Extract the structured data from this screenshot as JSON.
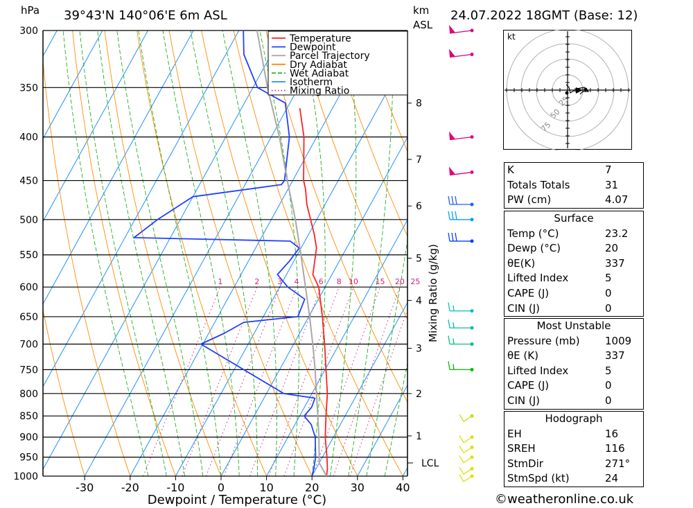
{
  "header": {
    "location": "39°43'N  140°06'E  6m  ASL",
    "datetime": "24.07.2022  18GMT  (Base: 12)",
    "hpa_label": "hPa",
    "km_label": "km",
    "asl_label": "ASL",
    "kt_label": "kt",
    "lcl_label": "LCL",
    "mixing_ratio_axis_label": "Mixing Ratio (g/kg)",
    "copyright": "©weatheronline.co.uk"
  },
  "chart_data": {
    "type": "line",
    "title": "39°43'N  140°06'E  6m  ASL",
    "xlabel": "Dewpoint / Temperature (°C)",
    "ylabel": "hPa",
    "xlim": [
      -40,
      40
    ],
    "ylim": [
      1000,
      300
    ],
    "pressure_ticks": [
      300,
      350,
      400,
      450,
      500,
      550,
      600,
      650,
      700,
      750,
      800,
      850,
      900,
      950,
      1000
    ],
    "temperature_ticks": [
      -30,
      -20,
      -10,
      0,
      10,
      20,
      30,
      40
    ],
    "km_ticks": [
      {
        "label": "8",
        "p": 365
      },
      {
        "label": "7",
        "p": 425
      },
      {
        "label": "6",
        "p": 482
      },
      {
        "label": "5",
        "p": 555
      },
      {
        "label": "4",
        "p": 622
      },
      {
        "label": "3",
        "p": 708
      },
      {
        "label": "2",
        "p": 800
      },
      {
        "label": "1",
        "p": 897
      }
    ],
    "lcl_p": 965,
    "mixing_ratio_labels": [
      "1",
      "2",
      "3",
      "4",
      "6",
      "8",
      "10",
      "15",
      "20",
      "25"
    ],
    "legend": [
      "Temperature",
      "Dewpoint",
      "Parcel Trajectory",
      "Dry Adiabat",
      "Wet Adiabat",
      "Isotherm",
      "Mixing Ratio"
    ],
    "legend_position": "top-right",
    "series": [
      {
        "name": "Temperature",
        "color": "#ff2020",
        "points": [
          [
            1000,
            23.2
          ],
          [
            980,
            22.5
          ],
          [
            950,
            21.0
          ],
          [
            900,
            18.2
          ],
          [
            850,
            15.8
          ],
          [
            800,
            13.4
          ],
          [
            750,
            10.2
          ],
          [
            700,
            6.8
          ],
          [
            650,
            3.0
          ],
          [
            600,
            -1.4
          ],
          [
            580,
            -4.2
          ],
          [
            540,
            -6.6
          ],
          [
            520,
            -8.8
          ],
          [
            480,
            -14.0
          ],
          [
            460,
            -16.2
          ],
          [
            450,
            -17.6
          ],
          [
            400,
            -22.8
          ],
          [
            370,
            -27.2
          ]
        ]
      },
      {
        "name": "Dewpoint",
        "color": "#2040ff",
        "points": [
          [
            1000,
            20.0
          ],
          [
            980,
            19.5
          ],
          [
            950,
            18.5
          ],
          [
            900,
            16.0
          ],
          [
            870,
            13.6
          ],
          [
            850,
            11.0
          ],
          [
            830,
            11.6
          ],
          [
            810,
            11.2
          ],
          [
            800,
            3.8
          ],
          [
            700,
            -20.4
          ],
          [
            680,
            -16.6
          ],
          [
            660,
            -13.6
          ],
          [
            650,
            -2.4
          ],
          [
            620,
            -3.0
          ],
          [
            600,
            -8.2
          ],
          [
            580,
            -12.0
          ],
          [
            560,
            -11.0
          ],
          [
            540,
            -10.4
          ],
          [
            530,
            -13.2
          ],
          [
            525,
            -48.0
          ],
          [
            500,
            -45.0
          ],
          [
            470,
            -40.0
          ],
          [
            455,
            -22.0
          ],
          [
            450,
            -21.8
          ],
          [
            400,
            -26.0
          ],
          [
            365,
            -31.0
          ],
          [
            350,
            -39.0
          ],
          [
            320,
            -46.0
          ],
          [
            300,
            -49.0
          ]
        ]
      },
      {
        "name": "Parcel Trajectory",
        "color": "#a8a8a8",
        "points": [
          [
            1000,
            23.2
          ],
          [
            965,
            20.0
          ],
          [
            900,
            16.8
          ],
          [
            850,
            14.0
          ],
          [
            800,
            11.0
          ],
          [
            750,
            7.8
          ],
          [
            700,
            4.2
          ],
          [
            650,
            0.2
          ],
          [
            600,
            -4.3
          ],
          [
            550,
            -9.2
          ],
          [
            500,
            -14.7
          ],
          [
            450,
            -21.2
          ],
          [
            400,
            -28.2
          ],
          [
            350,
            -36.8
          ],
          [
            300,
            -46.0
          ]
        ]
      }
    ],
    "winds": [
      {
        "p": 1000,
        "color": "#e0e000"
      },
      {
        "p": 980,
        "color": "#e0e000"
      },
      {
        "p": 950,
        "color": "#e0e000"
      },
      {
        "p": 925,
        "color": "#e0e000"
      },
      {
        "p": 900,
        "color": "#e0e000"
      },
      {
        "p": 850,
        "color": "#c8e000"
      },
      {
        "p": 750,
        "color": "#00c000"
      },
      {
        "p": 700,
        "color": "#00c080"
      },
      {
        "p": 670,
        "color": "#00c0a0"
      },
      {
        "p": 640,
        "color": "#00c0c0"
      },
      {
        "p": 530,
        "color": "#0040ff"
      },
      {
        "p": 500,
        "color": "#00a0ff"
      },
      {
        "p": 480,
        "color": "#2060ff"
      },
      {
        "p": 440,
        "color": "#e00080"
      },
      {
        "p": 400,
        "color": "#e00080"
      },
      {
        "p": 320,
        "color": "#e00080"
      },
      {
        "p": 300,
        "color": "#e00080"
      }
    ],
    "hodograph_ring_labels": [
      "25",
      "50",
      "75"
    ]
  },
  "indices": [
    {
      "label": "K",
      "value": "7"
    },
    {
      "label": "Totals Totals",
      "value": "31"
    },
    {
      "label": "PW (cm)",
      "value": "4.07"
    }
  ],
  "surface": {
    "title": "Surface",
    "rows": [
      {
        "label": "Temp (°C)",
        "value": "23.2"
      },
      {
        "label": "Dewp (°C)",
        "value": "20"
      },
      {
        "label": "θE(K)",
        "value": "337"
      },
      {
        "label": "Lifted Index",
        "value": "5"
      },
      {
        "label": "CAPE (J)",
        "value": "0"
      },
      {
        "label": "CIN (J)",
        "value": "0"
      }
    ]
  },
  "most_unstable": {
    "title": "Most Unstable",
    "rows": [
      {
        "label": "Pressure (mb)",
        "value": "1009"
      },
      {
        "label": "θE (K)",
        "value": "337"
      },
      {
        "label": "Lifted Index",
        "value": "5"
      },
      {
        "label": "CAPE (J)",
        "value": "0"
      },
      {
        "label": "CIN (J)",
        "value": "0"
      }
    ]
  },
  "hodograph": {
    "title": "Hodograph",
    "rows": [
      {
        "label": "EH",
        "value": "16"
      },
      {
        "label": "SREH",
        "value": "116"
      },
      {
        "label": "StmDir",
        "value": "271°"
      },
      {
        "label": "StmSpd (kt)",
        "value": "24"
      }
    ]
  }
}
